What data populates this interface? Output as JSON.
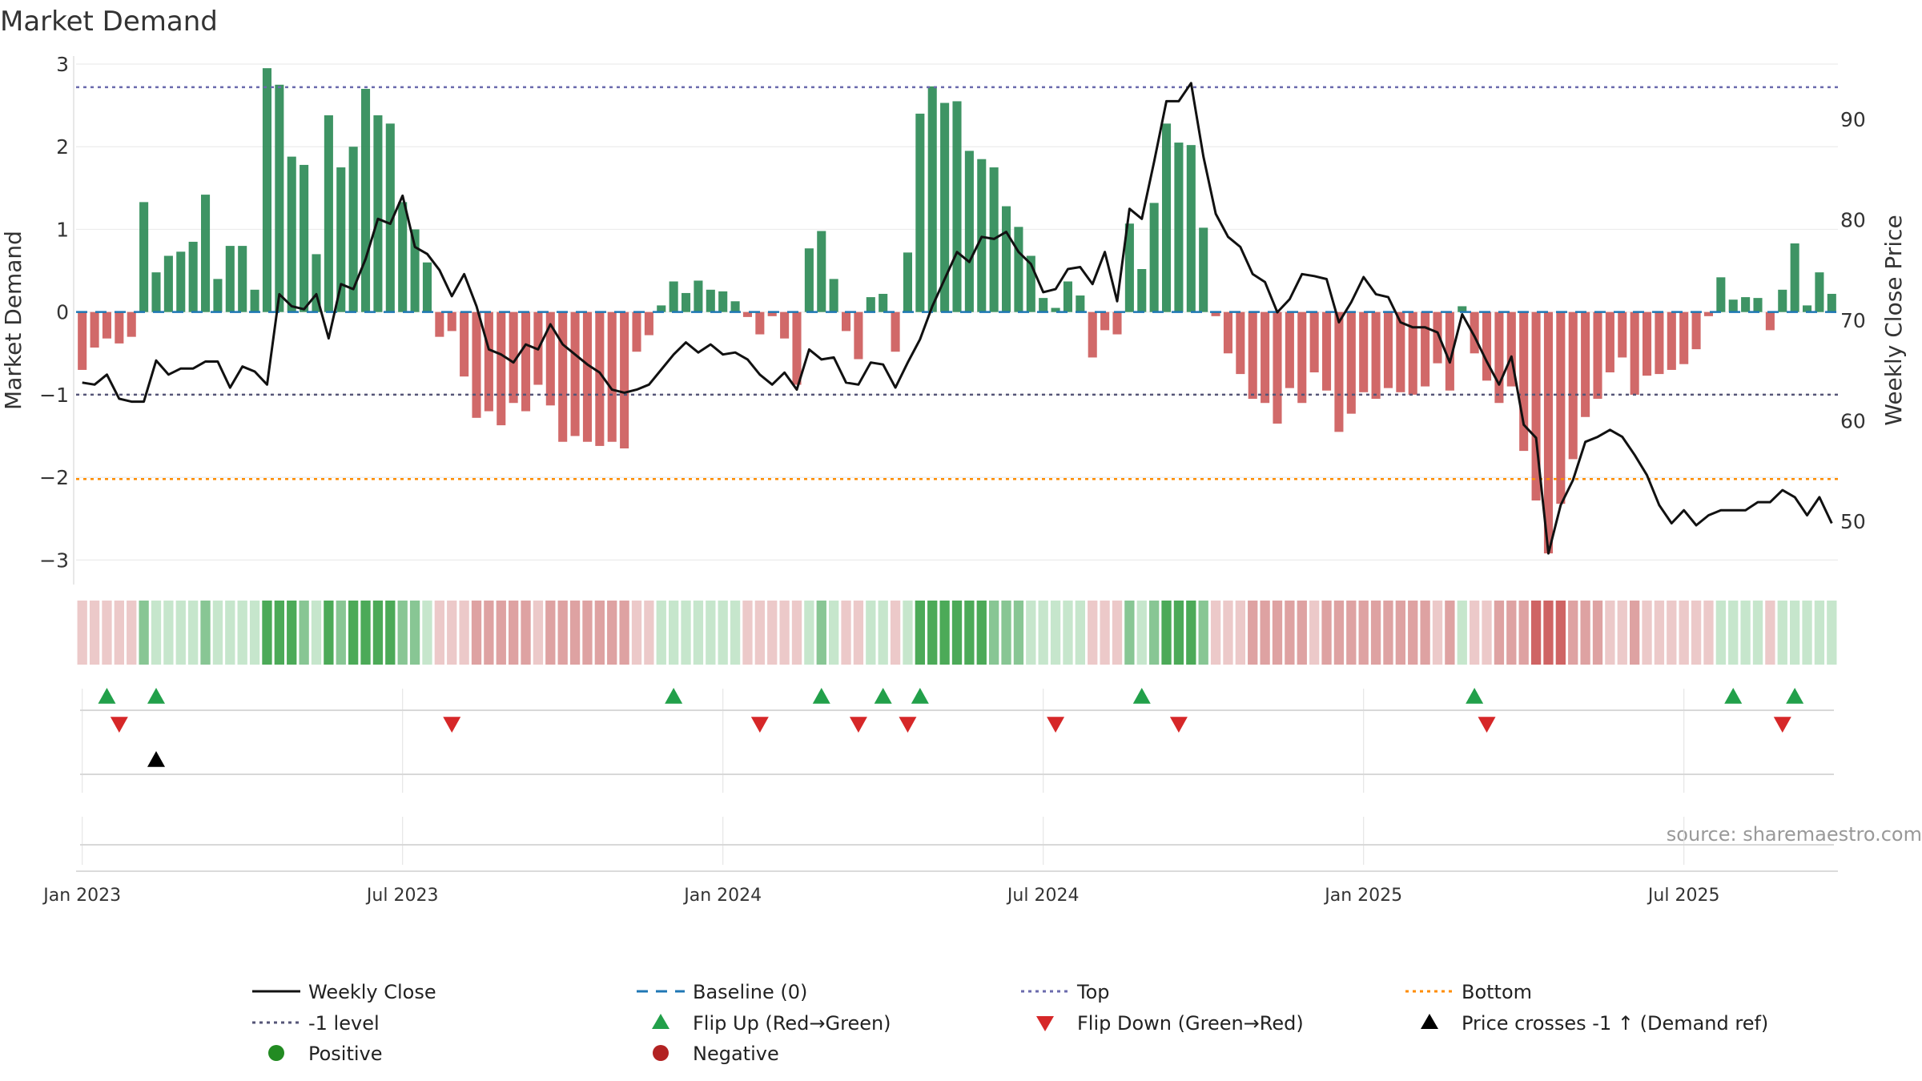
{
  "chart_data": {
    "type": "bar",
    "title": "Market Demand",
    "ylabel_left": "Market Demand",
    "ylabel_right": "Weekly Close Price",
    "source": "source: sharemaestro.com",
    "ylim_left": [
      -3.2,
      3.0
    ],
    "ylim_right": [
      44.5,
      95.5
    ],
    "yticks_left": [
      3,
      2,
      1,
      0,
      -1,
      -2,
      -3
    ],
    "yticks_left_labels": [
      "3",
      "2",
      "1",
      "0",
      "−1",
      "−2",
      "−3"
    ],
    "yticks_right": [
      90,
      80,
      70,
      60,
      50
    ],
    "top_level": 2.72,
    "bottom_level": -2.02,
    "minus_one_level": -1,
    "baseline": 0,
    "x_ticks": [
      {
        "week": 1,
        "label": "Jan 2023"
      },
      {
        "week": 27,
        "label": "Jul 2023"
      },
      {
        "week": 53,
        "label": "Jan 2024"
      },
      {
        "week": 79,
        "label": "Jul 2024"
      },
      {
        "week": 105,
        "label": "Jan 2025"
      },
      {
        "week": 131,
        "label": "Jul 2025"
      }
    ],
    "demand_values": [
      -0.7,
      -0.43,
      -0.32,
      -0.38,
      -0.3,
      1.33,
      0.48,
      0.68,
      0.73,
      0.85,
      1.42,
      0.4,
      0.8,
      0.8,
      0.27,
      2.95,
      2.75,
      1.88,
      1.78,
      0.7,
      2.38,
      1.75,
      2.0,
      2.7,
      2.38,
      2.28,
      1.33,
      1.0,
      0.6,
      -0.3,
      -0.23,
      -0.78,
      -1.28,
      -1.2,
      -1.37,
      -1.1,
      -1.2,
      -0.88,
      -1.13,
      -1.57,
      -1.5,
      -1.57,
      -1.62,
      -1.57,
      -1.65,
      -0.48,
      -0.28,
      0.08,
      0.37,
      0.23,
      0.38,
      0.27,
      0.25,
      0.13,
      -0.06,
      -0.27,
      -0.05,
      -0.32,
      -0.88,
      0.77,
      0.98,
      0.4,
      -0.23,
      -0.57,
      0.18,
      0.22,
      -0.48,
      0.72,
      2.4,
      2.73,
      2.53,
      2.55,
      1.95,
      1.85,
      1.75,
      1.28,
      1.03,
      0.68,
      0.17,
      0.05,
      0.37,
      0.2,
      -0.55,
      -0.22,
      -0.27,
      1.07,
      0.52,
      1.32,
      2.28,
      2.05,
      2.02,
      1.02,
      -0.05,
      -0.5,
      -0.75,
      -1.05,
      -1.1,
      -1.35,
      -0.92,
      -1.1,
      -0.73,
      -0.95,
      -1.45,
      -1.23,
      -0.97,
      -1.05,
      -0.92,
      -0.97,
      -1.0,
      -0.9,
      -0.62,
      -0.95,
      0.07,
      -0.5,
      -0.83,
      -1.1,
      -0.9,
      -1.68,
      -2.28,
      -2.92,
      -2.32,
      -1.78,
      -1.27,
      -1.05,
      -0.73,
      -0.55,
      -1.0,
      -0.77,
      -0.75,
      -0.7,
      -0.63,
      -0.45,
      -0.05,
      0.42,
      0.15,
      0.18,
      0.17,
      -0.22,
      0.27,
      0.83,
      0.08,
      0.48,
      0.22
    ],
    "weekly_close": [
      63.8,
      63.6,
      64.6,
      62.2,
      61.9,
      61.9,
      66.0,
      64.6,
      65.2,
      65.2,
      65.9,
      65.9,
      63.3,
      65.4,
      64.9,
      63.6,
      72.6,
      71.4,
      71.1,
      72.6,
      68.2,
      73.6,
      73.1,
      76.1,
      80.1,
      79.6,
      82.4,
      77.3,
      76.6,
      75.0,
      72.4,
      74.6,
      71.4,
      67.1,
      66.6,
      65.8,
      67.6,
      67.1,
      69.6,
      67.6,
      66.6,
      65.6,
      64.8,
      63.1,
      62.8,
      63.1,
      63.6,
      65.1,
      66.6,
      67.8,
      66.8,
      67.6,
      66.6,
      66.8,
      66.1,
      64.6,
      63.6,
      64.8,
      63.1,
      67.1,
      66.1,
      66.3,
      63.8,
      63.6,
      65.8,
      65.6,
      63.3,
      65.8,
      68.1,
      71.4,
      74.1,
      76.8,
      75.8,
      78.3,
      78.1,
      78.8,
      76.8,
      75.6,
      72.8,
      73.1,
      75.1,
      75.3,
      73.6,
      76.8,
      71.9,
      81.1,
      80.1,
      85.8,
      91.8,
      91.8,
      93.6,
      86.3,
      80.6,
      78.3,
      77.3,
      74.6,
      73.8,
      70.8,
      72.1,
      74.6,
      74.4,
      74.1,
      69.8,
      71.8,
      74.3,
      72.6,
      72.3,
      69.8,
      69.3,
      69.3,
      68.8,
      65.8,
      70.6,
      68.4,
      65.9,
      63.6,
      66.4,
      59.6,
      58.3,
      46.8,
      51.6,
      54.1,
      57.9,
      58.4,
      59.1,
      58.4,
      56.6,
      54.6,
      51.6,
      49.8,
      51.1,
      49.6,
      50.6,
      51.1,
      51.1,
      51.1,
      51.9,
      51.9,
      53.1,
      52.4,
      50.6,
      52.4,
      49.8
    ],
    "strip_colors_hex": {
      "strong_green": "#4caa58",
      "mid_green": "#88c694",
      "light_green": "#c6e6cc",
      "strong_red": "#cf6464",
      "mid_red": "#dea2a2",
      "light_red": "#ecc9c9"
    },
    "flip_up_weeks": [
      3,
      7,
      49,
      61,
      66,
      69,
      87,
      114,
      135,
      140
    ],
    "flip_down_weeks": [
      4,
      31,
      56,
      64,
      68,
      80,
      90,
      115,
      139
    ],
    "price_cross_weeks": [
      7
    ],
    "colors": {
      "positive_bar": "#2e8b57",
      "negative_bar": "#cd5c5c",
      "close_line": "#111111",
      "baseline": "#1f77b4",
      "top_line": "#6a6aad",
      "minus_one_line": "#555577",
      "bottom_line": "#ff8c00",
      "flip_up": "#22a04a",
      "flip_down": "#d62728",
      "price_cross": "#000000",
      "positive_dot": "#228b22",
      "negative_dot": "#b22222"
    },
    "legend": [
      {
        "key": "weekly_close",
        "label": "Weekly Close",
        "symbol": "line-solid"
      },
      {
        "key": "baseline",
        "label": "Baseline (0)",
        "symbol": "line-dashed"
      },
      {
        "key": "top",
        "label": "Top",
        "symbol": "line-dotted"
      },
      {
        "key": "bottom",
        "label": "Bottom",
        "symbol": "line-dotted-orange"
      },
      {
        "key": "minus_one",
        "label": "-1 level",
        "symbol": "line-dotted-grey"
      },
      {
        "key": "flip_up",
        "label": "Flip Up (Red→Green)",
        "symbol": "triangle-up"
      },
      {
        "key": "flip_down",
        "label": "Flip Down (Green→Red)",
        "symbol": "triangle-down"
      },
      {
        "key": "price_cross",
        "label": "Price crosses -1 ↑ (Demand ref)",
        "symbol": "triangle-up-black"
      },
      {
        "key": "positive",
        "label": "Positive",
        "symbol": "dot-green"
      },
      {
        "key": "negative",
        "label": "Negative",
        "symbol": "dot-red"
      }
    ]
  }
}
